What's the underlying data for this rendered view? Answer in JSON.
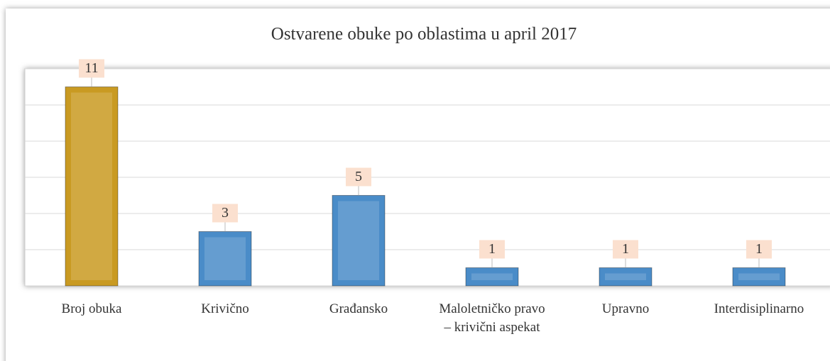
{
  "chart_data": {
    "type": "bar",
    "title": "Ostvarene  obuke po oblastima  u april 2017",
    "categories": [
      "Broj obuka",
      "Krivično",
      "Građansko",
      "Maloletničko pravo – krivični aspekat",
      "Upravno",
      "Interdisiplinarno"
    ],
    "values": [
      11,
      3,
      5,
      1,
      1,
      1
    ],
    "colors": [
      "#c99a22",
      "#4a8cc8",
      "#4a8cc8",
      "#4a8cc8",
      "#4a8cc8",
      "#4a8cc8"
    ],
    "ylim": [
      0,
      12
    ],
    "yticks": [
      0,
      2,
      4,
      6,
      8,
      10,
      12
    ],
    "grid": true
  }
}
